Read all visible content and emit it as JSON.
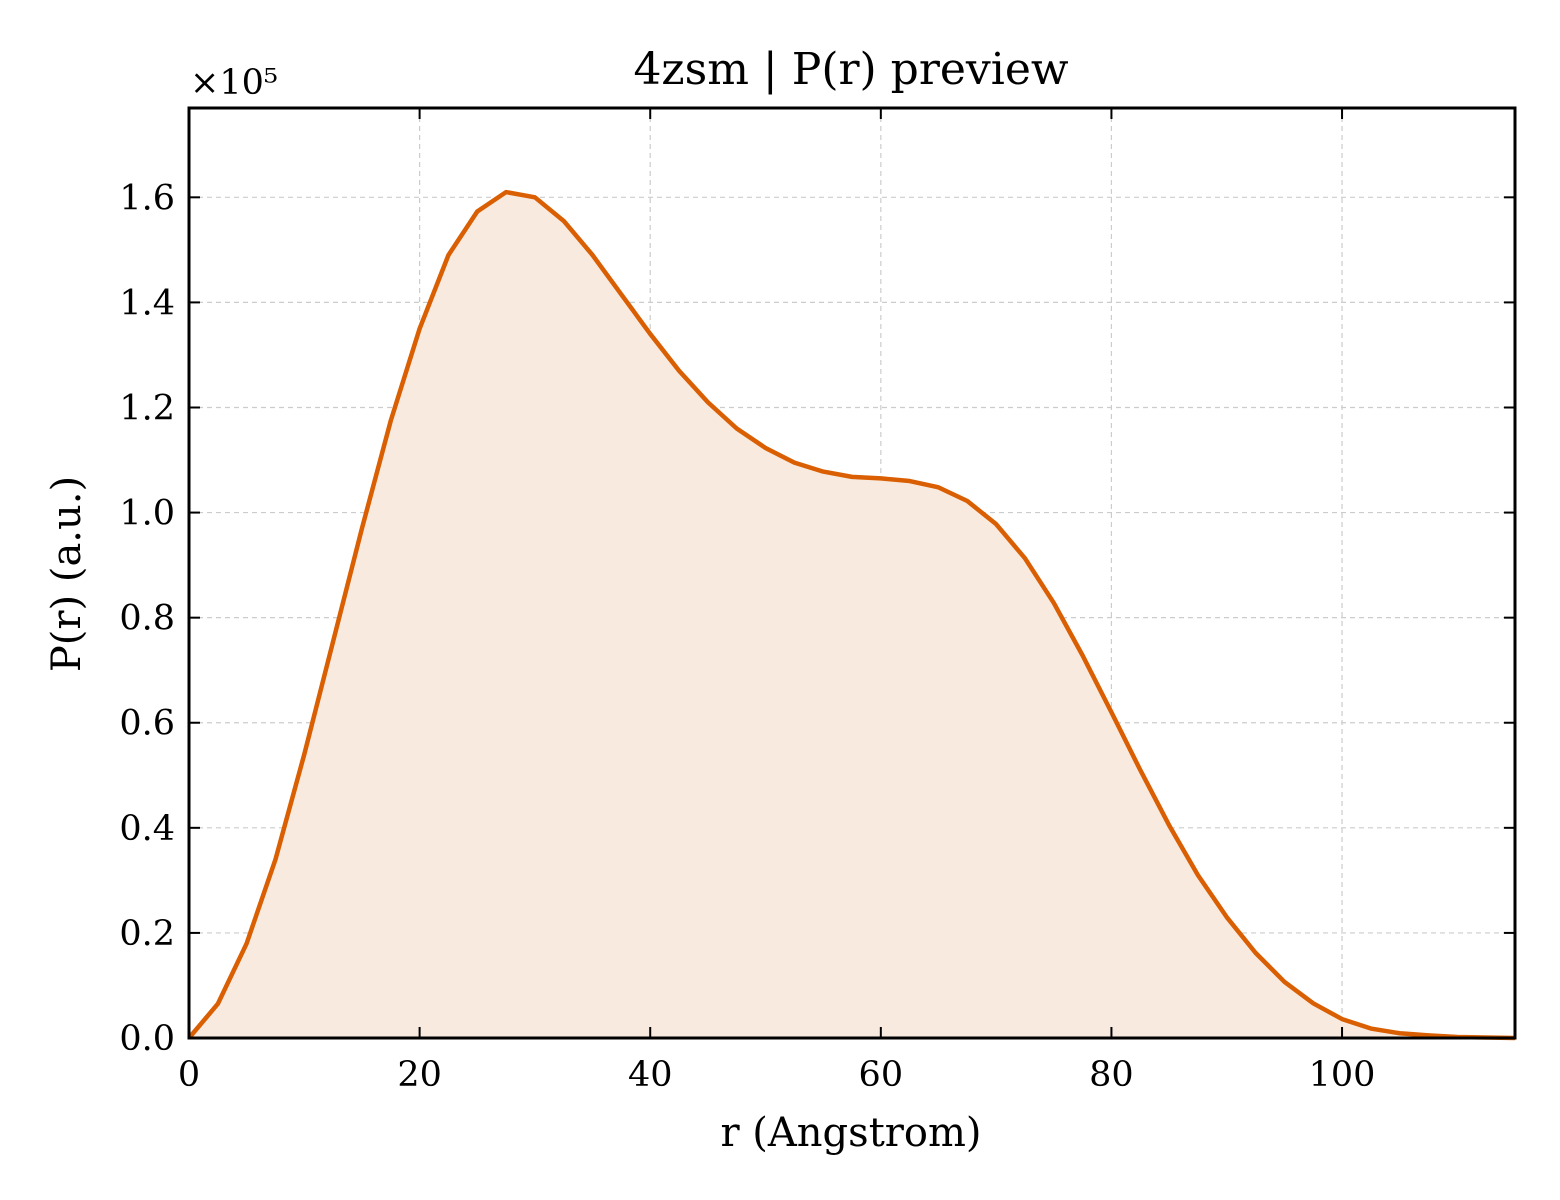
{
  "chart_data": {
    "type": "area",
    "title": "4zsm | P(r) preview",
    "xlabel": "r (Angstrom)",
    "ylabel": "P(r) (a.u.)",
    "y_scale_note": "×10⁵",
    "y_multiplier": 100000,
    "xlim": [
      0,
      115
    ],
    "ylim": [
      0,
      1.77
    ],
    "x_ticks": [
      0,
      20,
      40,
      60,
      80,
      100
    ],
    "x_tick_labels": [
      "0",
      "20",
      "40",
      "60",
      "80",
      "100"
    ],
    "y_ticks": [
      0.0,
      0.2,
      0.4,
      0.6,
      0.8,
      1.0,
      1.2,
      1.4,
      1.6
    ],
    "y_tick_labels": [
      "0.0",
      "0.2",
      "0.4",
      "0.6",
      "0.8",
      "1.0",
      "1.2",
      "1.4",
      "1.6"
    ],
    "grid": true,
    "colors": {
      "line": "#d95f02",
      "fill": "#f9eae0",
      "grid": "#cccccc",
      "frame": "#000000"
    },
    "series": [
      {
        "x": [
          0,
          2.5,
          5,
          7.5,
          10,
          12.5,
          15,
          17.5,
          20,
          22.5,
          25,
          27.5,
          30,
          32.5,
          35,
          37.5,
          40,
          42.5,
          45,
          47.5,
          50,
          52.5,
          55,
          57.5,
          60,
          62.5,
          65,
          67.5,
          70,
          72.5,
          75,
          77.5,
          80,
          82.5,
          85,
          87.5,
          90,
          92.5,
          95,
          97.5,
          100,
          102.5,
          105,
          107.5,
          110,
          112.5,
          115
        ],
        "values": [
          0.0,
          0.065,
          0.18,
          0.34,
          0.54,
          0.755,
          0.97,
          1.175,
          1.35,
          1.49,
          1.573,
          1.61,
          1.6,
          1.555,
          1.49,
          1.415,
          1.34,
          1.27,
          1.21,
          1.16,
          1.123,
          1.095,
          1.078,
          1.068,
          1.065,
          1.06,
          1.048,
          1.022,
          0.978,
          0.913,
          0.828,
          0.728,
          0.62,
          0.51,
          0.405,
          0.31,
          0.23,
          0.162,
          0.107,
          0.066,
          0.036,
          0.018,
          0.009,
          0.005,
          0.002,
          0.001,
          0.0
        ]
      }
    ]
  }
}
